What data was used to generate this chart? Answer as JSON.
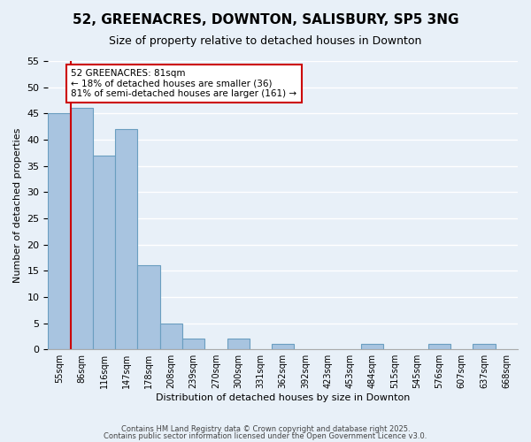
{
  "title": "52, GREENACRES, DOWNTON, SALISBURY, SP5 3NG",
  "subtitle": "Size of property relative to detached houses in Downton",
  "xlabel": "Distribution of detached houses by size in Downton",
  "ylabel": "Number of detached properties",
  "footer_line1": "Contains HM Land Registry data © Crown copyright and database right 2025.",
  "footer_line2": "Contains public sector information licensed under the Open Government Licence v3.0.",
  "bin_labels": [
    "55sqm",
    "86sqm",
    "116sqm",
    "147sqm",
    "178sqm",
    "208sqm",
    "239sqm",
    "270sqm",
    "300sqm",
    "331sqm",
    "362sqm",
    "392sqm",
    "423sqm",
    "453sqm",
    "484sqm",
    "515sqm",
    "545sqm",
    "576sqm",
    "607sqm",
    "637sqm",
    "668sqm"
  ],
  "bar_values": [
    45,
    46,
    37,
    42,
    16,
    5,
    2,
    0,
    2,
    0,
    1,
    0,
    0,
    0,
    1,
    0,
    0,
    1,
    0,
    1,
    0
  ],
  "bar_color": "#a8c4e0",
  "bar_edge_color": "#6a9ec0",
  "background_color": "#e8f0f8",
  "grid_color": "#ffffff",
  "vline_x": 1,
  "vline_color": "#cc0000",
  "annotation_title": "52 GREENACRES: 81sqm",
  "annotation_line1": "← 18% of detached houses are smaller (36)",
  "annotation_line2": "81% of semi-detached houses are larger (161) →",
  "annotation_box_color": "#ffffff",
  "annotation_box_edge": "#cc0000",
  "ylim": [
    0,
    55
  ],
  "yticks": [
    0,
    5,
    10,
    15,
    20,
    25,
    30,
    35,
    40,
    45,
    50,
    55
  ]
}
